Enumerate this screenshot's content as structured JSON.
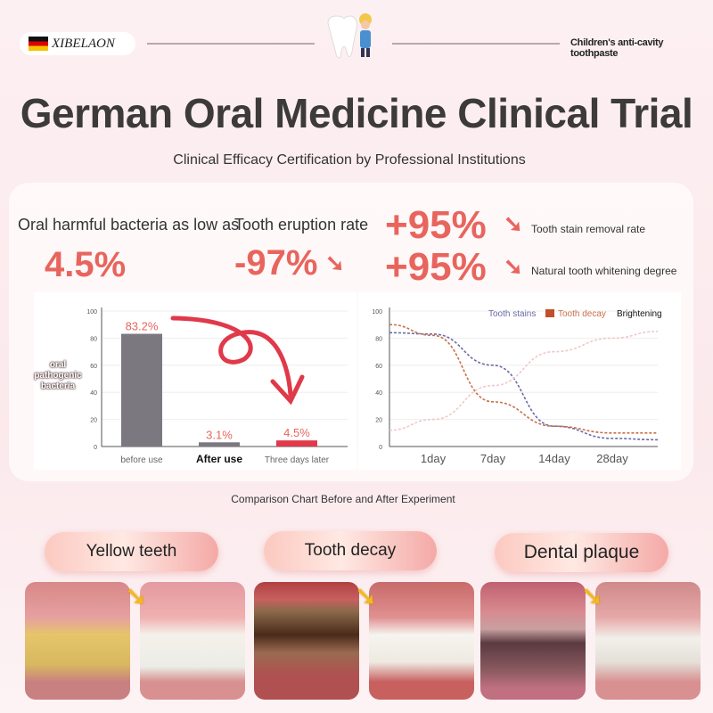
{
  "header": {
    "brand": "XIBELAON",
    "tagline": "Children's anti-cavity toothpaste"
  },
  "title": "German Oral Medicine Clinical Trial",
  "subtitle": "Clinical Efficacy Certification by Professional Institutions",
  "stats": [
    {
      "label": "Oral harmful bacteria as low as",
      "value": "4.5%"
    },
    {
      "label": "Tooth eruption rate",
      "value": "-97%"
    },
    {
      "label": "Tooth stain removal rate",
      "value": "+95%"
    },
    {
      "label": "Natural tooth whitening degree",
      "value": "+95%"
    }
  ],
  "colors": {
    "accent": "#e8655d",
    "bar_gray": "#7c7880",
    "bar_red": "#e0394a",
    "stains": "#6a6aa8",
    "decay": "#c8704a",
    "brightening": "#f0c8c8"
  },
  "chart_data": [
    {
      "type": "bar",
      "ylabel": "oral pathogenic bacteria",
      "ylim": [
        0,
        100
      ],
      "yticks": [
        "0",
        "20",
        "40",
        "60",
        "80",
        "100"
      ],
      "categories": [
        "before use",
        "After use",
        "Three days later"
      ],
      "values": [
        83.2,
        3.1,
        4.5
      ],
      "data_labels": [
        "83.2%",
        "3.1%",
        "4.5%"
      ],
      "grid": true
    },
    {
      "type": "line",
      "ylim": [
        0,
        100
      ],
      "yticks": [
        "0",
        "20",
        "40",
        "60",
        "80",
        "100"
      ],
      "categories": [
        "1day",
        "7day",
        "14day",
        "28day"
      ],
      "grid": true,
      "legend": "top-right",
      "series": [
        {
          "name": "Tooth stains",
          "values": [
            83,
            60,
            15,
            6
          ]
        },
        {
          "name": "Tooth decay",
          "values": [
            82,
            33,
            15,
            10
          ]
        },
        {
          "name": "Brightening",
          "values": [
            20,
            45,
            70,
            80
          ]
        }
      ]
    }
  ],
  "caption": "Comparison Chart Before and After Experiment",
  "comparisons": [
    {
      "label": "Yellow teeth"
    },
    {
      "label": "Tooth decay"
    },
    {
      "label": "Dental plaque"
    }
  ]
}
